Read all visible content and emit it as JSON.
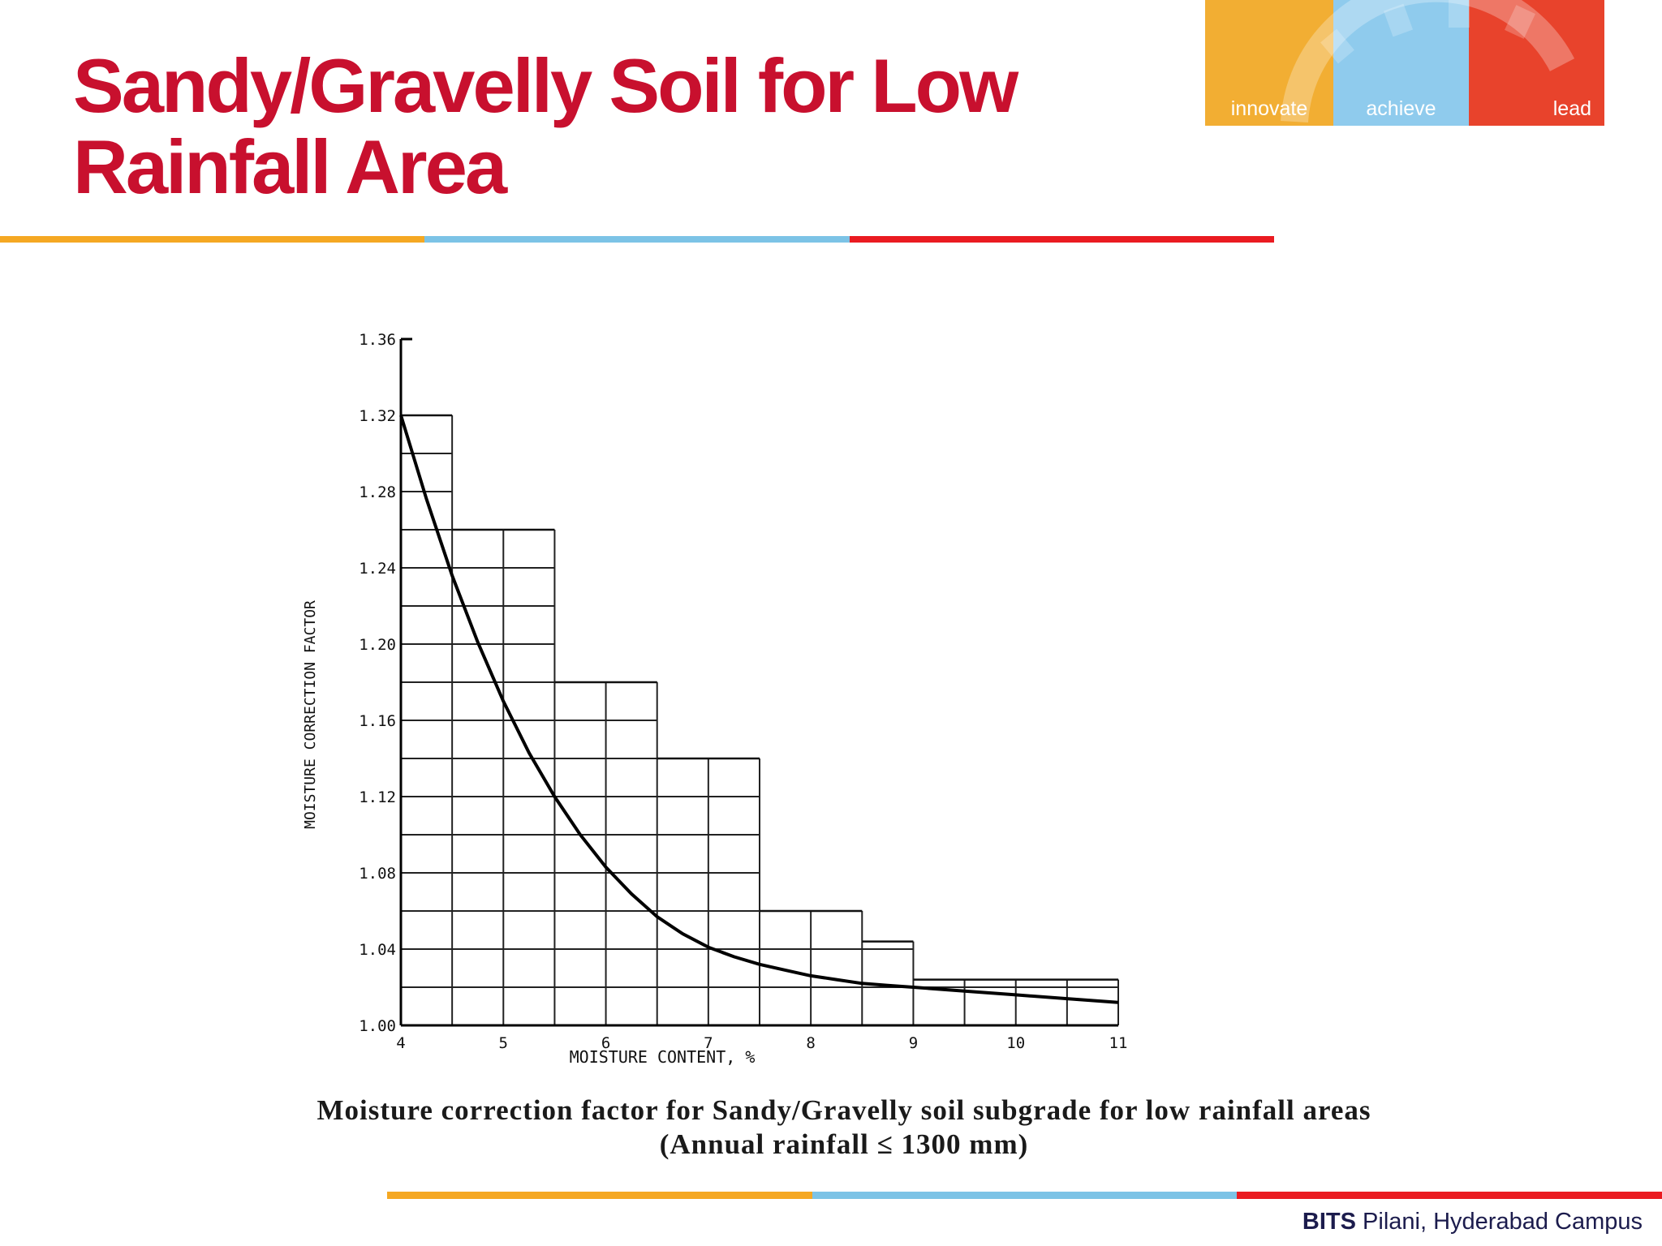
{
  "slide": {
    "title_line1": "Sandy/Gravelly Soil for Low",
    "title_line2": "Rainfall Area"
  },
  "logo": {
    "words": [
      "innovate",
      "achieve",
      "lead"
    ],
    "colors": [
      "#f2ae33",
      "#8fcbed",
      "#e8432c"
    ]
  },
  "caption": {
    "line1": "Moisture correction factor for Sandy/Gravelly soil subgrade for low rainfall areas",
    "line2": "(Annual rainfall ≤  1300 mm)"
  },
  "footer": {
    "bold": "BITS",
    "rest": " Pilani, Hyderabad Campus"
  },
  "chart_data": {
    "type": "line",
    "xlabel": "MOISTURE  CONTENT, %",
    "ylabel": "MOISTURE CORRECTION FACTOR",
    "xlim": [
      4,
      11
    ],
    "ylim": [
      1.0,
      1.36
    ],
    "xticks": [
      "4",
      "5",
      "6",
      "7",
      "8",
      "9",
      "10",
      "11"
    ],
    "yticks": [
      "1.00",
      "1.04",
      "1.08",
      "1.12",
      "1.16",
      "1.20",
      "1.24",
      "1.28",
      "1.32",
      "1.36"
    ],
    "grid": true,
    "grid_minor_x": 0.5,
    "grid_minor_y": 0.02,
    "grid_steps": [
      {
        "x_to": 4.5,
        "y_top": 1.32
      },
      {
        "x_to": 5.5,
        "y_top": 1.26
      },
      {
        "x_to": 6.5,
        "y_top": 1.18
      },
      {
        "x_to": 7.5,
        "y_top": 1.14
      },
      {
        "x_to": 8.5,
        "y_top": 1.06
      },
      {
        "x_to": 9.0,
        "y_top": 1.044
      },
      {
        "x_to": 11.0,
        "y_top": 1.024
      }
    ],
    "series": [
      {
        "x": [
          4.0,
          4.25,
          4.5,
          4.75,
          5.0,
          5.25,
          5.5,
          5.75,
          6.0,
          6.25,
          6.5,
          6.75,
          7.0,
          7.25,
          7.5,
          7.75,
          8.0,
          8.25,
          8.5,
          8.75,
          9.0,
          9.5,
          10.0,
          10.5,
          11.0
        ],
        "y": [
          1.32,
          1.276,
          1.236,
          1.201,
          1.17,
          1.143,
          1.12,
          1.1,
          1.083,
          1.069,
          1.057,
          1.048,
          1.041,
          1.036,
          1.032,
          1.029,
          1.026,
          1.024,
          1.022,
          1.021,
          1.02,
          1.018,
          1.016,
          1.014,
          1.012
        ]
      }
    ]
  }
}
